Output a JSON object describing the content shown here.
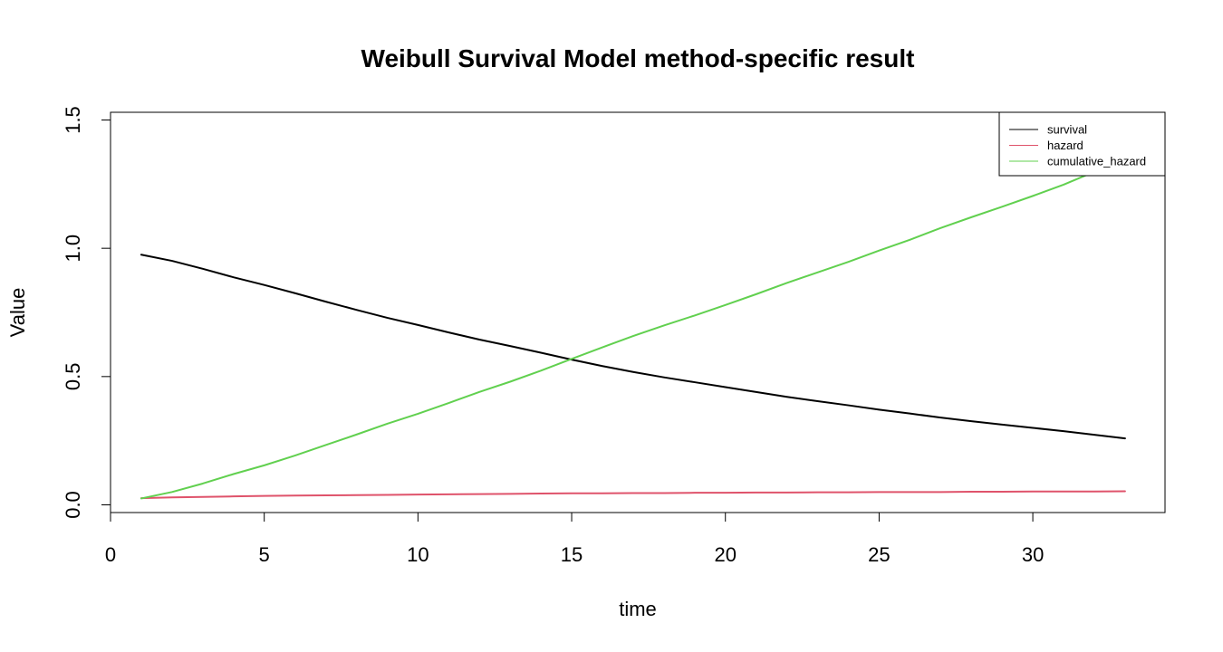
{
  "chart_data": {
    "type": "line",
    "title": "Weibull Survival Model method-specific result",
    "xlabel": "time",
    "ylabel": "Value",
    "xlim": [
      0,
      34.3
    ],
    "ylim": [
      -0.03,
      1.53
    ],
    "x_ticks": [
      0,
      5,
      10,
      15,
      20,
      25,
      30
    ],
    "x_tick_labels": [
      "0",
      "5",
      "10",
      "15",
      "20",
      "25",
      "30"
    ],
    "y_ticks": [
      0.0,
      0.5,
      1.0,
      1.5
    ],
    "y_tick_labels": [
      "0.0",
      "0.5",
      "1.0",
      "1.5"
    ],
    "grid": false,
    "legend_position": "top-right",
    "x": [
      1,
      2,
      3,
      4,
      5,
      6,
      7,
      8,
      9,
      10,
      11,
      12,
      13,
      14,
      15,
      16,
      17,
      18,
      19,
      20,
      21,
      22,
      23,
      24,
      25,
      26,
      27,
      28,
      29,
      30,
      31,
      32,
      33
    ],
    "series": [
      {
        "name": "survival",
        "color": "#000000",
        "values": [
          0.975,
          0.951,
          0.92,
          0.887,
          0.857,
          0.825,
          0.792,
          0.76,
          0.729,
          0.701,
          0.672,
          0.644,
          0.619,
          0.593,
          0.566,
          0.541,
          0.518,
          0.497,
          0.478,
          0.459,
          0.44,
          0.421,
          0.404,
          0.388,
          0.371,
          0.356,
          0.34,
          0.326,
          0.313,
          0.3,
          0.287,
          0.273,
          0.259
        ]
      },
      {
        "name": "hazard",
        "color": "#DF536B",
        "values": [
          0.026,
          0.029,
          0.031,
          0.033,
          0.035,
          0.036,
          0.037,
          0.038,
          0.039,
          0.04,
          0.041,
          0.042,
          0.043,
          0.044,
          0.045,
          0.045,
          0.046,
          0.046,
          0.047,
          0.047,
          0.048,
          0.048,
          0.049,
          0.049,
          0.05,
          0.05,
          0.05,
          0.051,
          0.051,
          0.052,
          0.052,
          0.052,
          0.053
        ]
      },
      {
        "name": "cumulative_hazard",
        "color": "#61D04F",
        "values": [
          0.025,
          0.05,
          0.083,
          0.12,
          0.154,
          0.192,
          0.233,
          0.274,
          0.316,
          0.355,
          0.397,
          0.44,
          0.48,
          0.523,
          0.569,
          0.614,
          0.658,
          0.699,
          0.738,
          0.779,
          0.821,
          0.865,
          0.906,
          0.947,
          0.991,
          1.033,
          1.079,
          1.121,
          1.162,
          1.204,
          1.248,
          1.298,
          1.351
        ]
      }
    ]
  }
}
